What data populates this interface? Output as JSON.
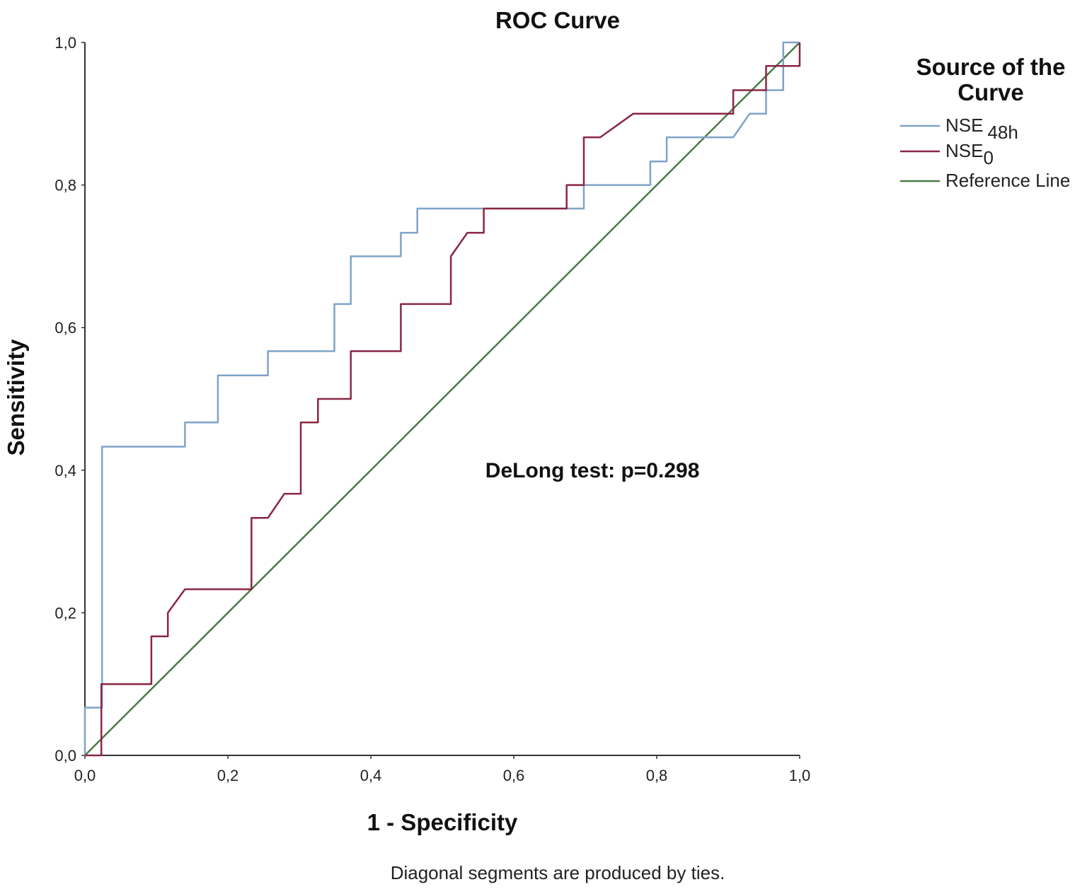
{
  "chart_data": {
    "type": "line",
    "title": "ROC Curve",
    "xlabel": "1 - Specificity",
    "ylabel": "Sensitivity",
    "xlim": [
      0,
      1
    ],
    "ylim": [
      0,
      1
    ],
    "grid": false,
    "x_ticks": [
      0,
      0.2,
      0.4,
      0.6,
      0.8,
      1.0
    ],
    "y_ticks": [
      0,
      0.2,
      0.4,
      0.6,
      0.8,
      1.0
    ],
    "x_tick_labels": [
      "0,0",
      "0,2",
      "0,4",
      "0,6",
      "0,8",
      "1,0"
    ],
    "y_tick_labels": [
      "0,0",
      "0,2",
      "0,4",
      "0,6",
      "0,8",
      "1,0"
    ],
    "legend": {
      "title_lines": [
        "Source of the",
        "Curve"
      ],
      "position": "right",
      "entries": [
        {
          "label": "NSE",
          "subscript": "48h",
          "series_index": 0
        },
        {
          "label": "NSE",
          "subscript": "0",
          "series_index": 1
        },
        {
          "label": "Reference Line",
          "subscript": "",
          "series_index": 2
        }
      ]
    },
    "series": [
      {
        "name": "NSE 48h",
        "color": "#7fa3c8",
        "points": [
          [
            0.0,
            0.0
          ],
          [
            0.0,
            0.067
          ],
          [
            0.024,
            0.067
          ],
          [
            0.024,
            0.433
          ],
          [
            0.14,
            0.433
          ],
          [
            0.14,
            0.467
          ],
          [
            0.186,
            0.467
          ],
          [
            0.186,
            0.533
          ],
          [
            0.256,
            0.533
          ],
          [
            0.256,
            0.567
          ],
          [
            0.349,
            0.567
          ],
          [
            0.349,
            0.633
          ],
          [
            0.372,
            0.633
          ],
          [
            0.372,
            0.7
          ],
          [
            0.442,
            0.7
          ],
          [
            0.442,
            0.733
          ],
          [
            0.465,
            0.733
          ],
          [
            0.465,
            0.767
          ],
          [
            0.698,
            0.767
          ],
          [
            0.698,
            0.8
          ],
          [
            0.791,
            0.8
          ],
          [
            0.791,
            0.833
          ],
          [
            0.814,
            0.833
          ],
          [
            0.814,
            0.867
          ],
          [
            0.907,
            0.867
          ],
          [
            0.93,
            0.9
          ],
          [
            0.953,
            0.9
          ],
          [
            0.953,
            0.933
          ],
          [
            0.977,
            0.933
          ],
          [
            0.977,
            1.0
          ],
          [
            1.0,
            1.0
          ]
        ]
      },
      {
        "name": "NSE 0",
        "color": "#8b2642",
        "points": [
          [
            0.0,
            0.0
          ],
          [
            0.023,
            0.0
          ],
          [
            0.023,
            0.1
          ],
          [
            0.093,
            0.1
          ],
          [
            0.093,
            0.167
          ],
          [
            0.116,
            0.167
          ],
          [
            0.116,
            0.2
          ],
          [
            0.14,
            0.233
          ],
          [
            0.233,
            0.233
          ],
          [
            0.233,
            0.333
          ],
          [
            0.256,
            0.333
          ],
          [
            0.279,
            0.367
          ],
          [
            0.302,
            0.367
          ],
          [
            0.302,
            0.467
          ],
          [
            0.326,
            0.467
          ],
          [
            0.326,
            0.5
          ],
          [
            0.372,
            0.5
          ],
          [
            0.372,
            0.567
          ],
          [
            0.442,
            0.567
          ],
          [
            0.442,
            0.633
          ],
          [
            0.512,
            0.633
          ],
          [
            0.512,
            0.7
          ],
          [
            0.535,
            0.733
          ],
          [
            0.558,
            0.733
          ],
          [
            0.558,
            0.767
          ],
          [
            0.674,
            0.767
          ],
          [
            0.674,
            0.8
          ],
          [
            0.698,
            0.8
          ],
          [
            0.698,
            0.867
          ],
          [
            0.721,
            0.867
          ],
          [
            0.767,
            0.9
          ],
          [
            0.907,
            0.9
          ],
          [
            0.907,
            0.933
          ],
          [
            0.953,
            0.933
          ],
          [
            0.953,
            0.967
          ],
          [
            1.0,
            0.967
          ],
          [
            1.0,
            1.0
          ]
        ]
      },
      {
        "name": "Reference Line",
        "color": "#4a7a4a",
        "points": [
          [
            0.0,
            0.0
          ],
          [
            1.0,
            1.0
          ]
        ]
      }
    ],
    "annotations": [
      {
        "text": "DeLong test: p=0.298",
        "x": 0.71,
        "y": 0.4
      }
    ],
    "footnote": "Diagonal segments are produced by ties."
  }
}
